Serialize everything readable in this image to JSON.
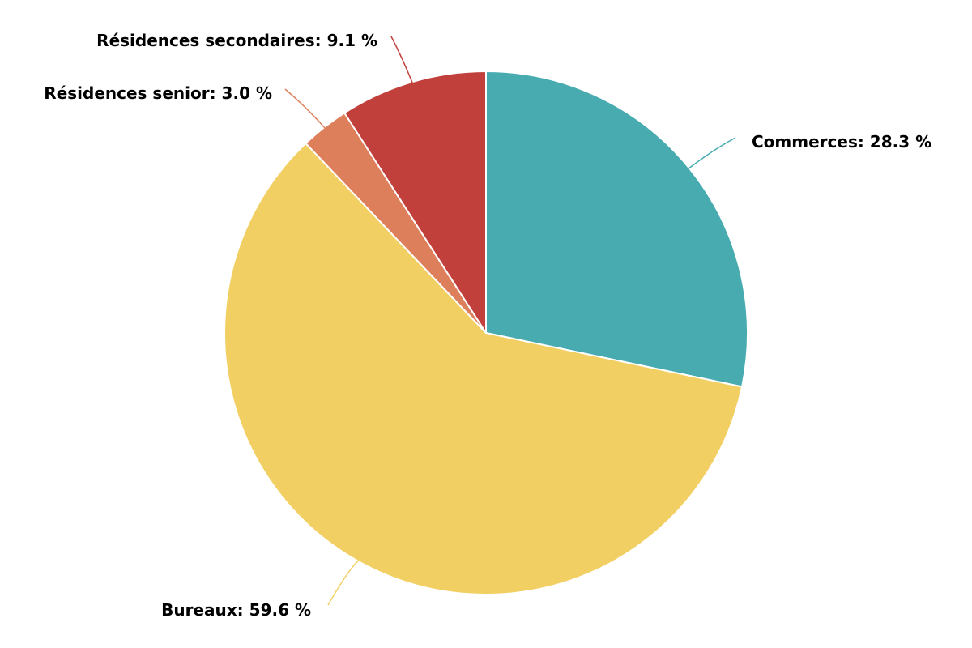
{
  "chart_data": {
    "type": "pie",
    "title": "",
    "slices": [
      {
        "name": "Commerces",
        "value": 28.3,
        "color": "#47ABB0",
        "label": "Commerces: 28.3 %"
      },
      {
        "name": "Bureaux",
        "value": 59.6,
        "color": "#F2CF63",
        "label": "Bureaux: 59.6 %"
      },
      {
        "name": "Résidences senior",
        "value": 3.0,
        "color": "#DE7F5C",
        "label": "Résidences senior: 3.0 %"
      },
      {
        "name": "Résidences secondaires",
        "value": 9.1,
        "color": "#C1403C",
        "label": "Résidences secondaires: 9.1 %"
      }
    ],
    "start_angle": "12 o'clock",
    "direction": "clockwise",
    "legend": "none"
  }
}
